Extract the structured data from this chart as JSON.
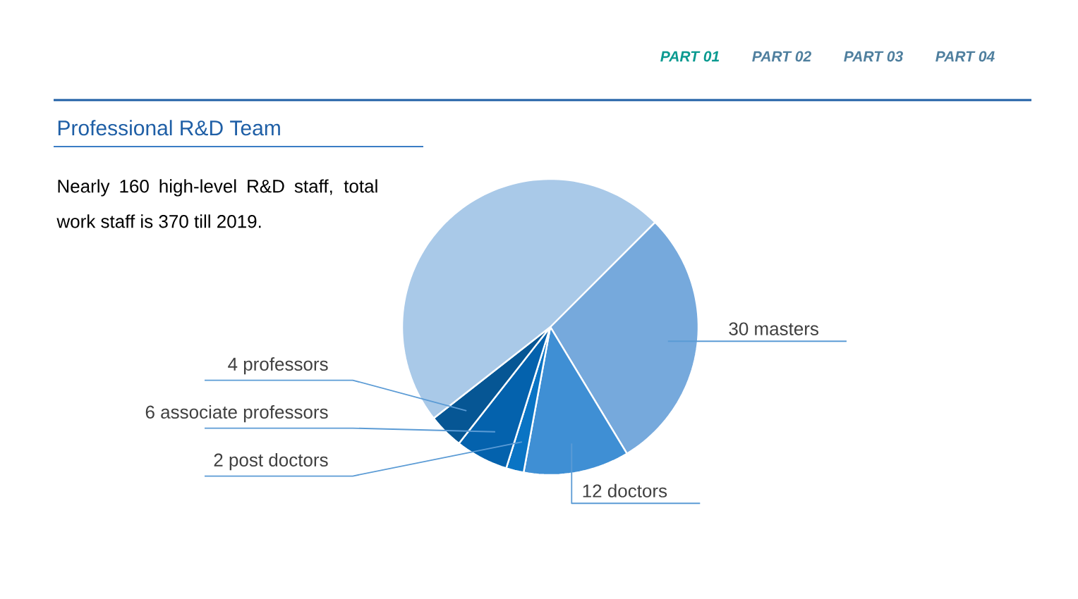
{
  "chart_data": {
    "type": "pie",
    "title": "Professional R&D Team",
    "subtitle": "Nearly 160 high-level R&D staff, total work staff is 370 till 2019.",
    "categories": [
      "30 masters",
      "12 doctors",
      "2 post doctors",
      "6 associate professors",
      "4 professors",
      null
    ],
    "values": [
      30,
      12,
      2,
      6,
      4,
      50
    ],
    "colors": [
      "#76a9dc",
      "#3f8fd4",
      "#0a74c4",
      "#0462ad",
      "#065694",
      "#a9c9e8"
    ],
    "annotations": [
      "PART 01",
      "PART 02",
      "PART 03",
      "PART 04"
    ]
  }
}
